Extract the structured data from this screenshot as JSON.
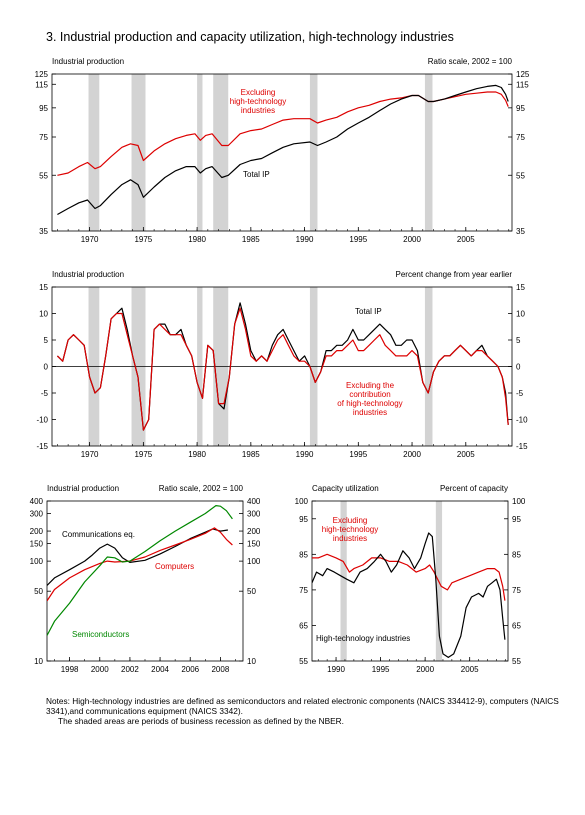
{
  "page_title": "3.  Industrial production and capacity utilization, high-technology industries",
  "notes": {
    "line1": "Notes:  High-technology industries are defined as semiconductors and related electronic components (NAICS 334412-9), computers (NAICS 3341),and communications equipment (NAICS 3342).",
    "line2": "The shaded areas are periods of business recession as defined by the NBER."
  },
  "colors": {
    "red": "#dd0000",
    "black": "#000000",
    "green": "#008800",
    "shade": "#d3d3d3"
  },
  "chart_data": [
    {
      "id": "ip_levels",
      "type": "line",
      "title_left": "Industrial production",
      "title_right": "Ratio scale, 2002 = 100",
      "yscale": "log",
      "ylim": [
        35,
        125
      ],
      "yticks": [
        35,
        55,
        75,
        95,
        115,
        125
      ],
      "xlim": [
        1966.5,
        2009.3
      ],
      "xticks": [
        1970,
        1975,
        1980,
        1985,
        1990,
        1995,
        2000,
        2005
      ],
      "recessions": [
        [
          1969.9,
          1970.9
        ],
        [
          1973.9,
          1975.2
        ],
        [
          1980.0,
          1980.5
        ],
        [
          1981.5,
          1982.9
        ],
        [
          1990.5,
          1991.2
        ],
        [
          2001.2,
          2001.9
        ]
      ],
      "series": [
        {
          "name": "Excluding high-technology industries",
          "label_lines": [
            "Excluding",
            "high-technology",
            "industries"
          ],
          "color": "red",
          "x": [
            1967,
            1968,
            1969,
            1969.8,
            1970.5,
            1971,
            1972,
            1973,
            1973.8,
            1974.5,
            1975.0,
            1976,
            1977,
            1978,
            1979,
            1979.8,
            1980.3,
            1980.8,
            1981.4,
            1982.3,
            1982.9,
            1984,
            1985,
            1986,
            1987,
            1988,
            1989,
            1990.5,
            1991.2,
            1992,
            1993,
            1994,
            1995,
            1996,
            1997,
            1998,
            1999,
            2000,
            2000.6,
            2001.5,
            2002,
            2003,
            2004,
            2005,
            2006,
            2007,
            2007.8,
            2008.3,
            2008.7,
            2008.95
          ],
          "y": [
            55,
            56,
            59,
            61,
            58,
            59,
            64,
            69,
            71,
            70,
            62,
            67,
            71,
            74,
            76,
            77,
            73,
            76,
            77,
            70,
            70,
            77,
            79,
            80,
            83,
            86,
            87,
            87,
            84,
            86,
            88,
            92,
            95,
            97,
            100,
            102,
            103,
            105,
            105,
            100,
            100,
            102,
            104,
            106,
            107,
            108,
            108,
            106,
            101,
            96
          ]
        },
        {
          "name": "Total IP",
          "label_lines": [
            "Total IP"
          ],
          "color": "black",
          "x": [
            1967,
            1968,
            1969,
            1969.8,
            1970.5,
            1971,
            1972,
            1973,
            1973.8,
            1974.5,
            1975.0,
            1976,
            1977,
            1978,
            1979,
            1979.8,
            1980.3,
            1980.8,
            1981.4,
            1982.3,
            1982.9,
            1984,
            1985,
            1986,
            1987,
            1988,
            1989,
            1990.5,
            1991.2,
            1992,
            1993,
            1994,
            1995,
            1996,
            1997,
            1998,
            1999,
            2000,
            2000.6,
            2001.5,
            2002,
            2003,
            2004,
            2005,
            2006,
            2007,
            2007.8,
            2008.3,
            2008.7,
            2008.95
          ],
          "y": [
            40,
            42,
            44,
            45,
            42,
            43,
            47,
            51,
            53,
            51,
            46,
            50,
            54,
            57,
            59,
            59,
            56,
            58,
            59,
            54,
            55,
            60,
            62,
            63,
            66,
            69,
            71,
            72,
            70,
            72,
            75,
            80,
            84,
            88,
            93,
            98,
            102,
            105,
            105,
            100,
            100,
            102,
            105,
            108,
            111,
            113,
            114,
            112,
            106,
            100
          ]
        }
      ]
    },
    {
      "id": "ip_pct_change",
      "type": "line",
      "title_left": "Industrial production",
      "title_right": "Percent change from year earlier",
      "ylim": [
        -15,
        15
      ],
      "yticks": [
        -15,
        -10,
        -5,
        0,
        5,
        10,
        15
      ],
      "xlim": [
        1966.5,
        2009.3
      ],
      "xticks": [
        1970,
        1975,
        1980,
        1985,
        1990,
        1995,
        2000,
        2005
      ],
      "recessions": [
        [
          1969.9,
          1970.9
        ],
        [
          1973.9,
          1975.2
        ],
        [
          1980.0,
          1980.5
        ],
        [
          1981.5,
          1982.9
        ],
        [
          1990.5,
          1991.2
        ],
        [
          2001.2,
          2001.9
        ]
      ],
      "series": [
        {
          "name": "Total IP",
          "label_lines": [
            "Total IP"
          ],
          "color": "black",
          "x": [
            1967,
            1967.5,
            1968,
            1968.5,
            1969,
            1969.5,
            1970,
            1970.5,
            1971,
            1971.5,
            1972,
            1972.5,
            1973,
            1973.5,
            1974,
            1974.5,
            1975,
            1975.5,
            1976,
            1976.5,
            1977,
            1977.5,
            1978,
            1978.5,
            1979,
            1979.5,
            1980,
            1980.5,
            1981,
            1981.5,
            1982,
            1982.5,
            1983,
            1983.5,
            1984,
            1984.5,
            1985,
            1985.5,
            1986,
            1986.5,
            1987,
            1987.5,
            1988,
            1988.5,
            1989,
            1989.5,
            1990,
            1990.5,
            1991,
            1991.5,
            1992,
            1992.5,
            1993,
            1993.5,
            1994,
            1994.5,
            1995,
            1995.5,
            1996,
            1996.5,
            1997,
            1997.5,
            1998,
            1998.5,
            1999,
            1999.5,
            2000,
            2000.5,
            2001,
            2001.5,
            2002,
            2002.5,
            2003,
            2003.5,
            2004,
            2004.5,
            2005,
            2005.5,
            2006,
            2006.5,
            2007,
            2007.5,
            2008,
            2008.4,
            2008.7,
            2008.95
          ],
          "y": [
            2,
            1,
            5,
            6,
            5,
            4,
            -2,
            -5,
            -4,
            2,
            9,
            10,
            11,
            7,
            2,
            -2,
            -12,
            -10,
            7,
            8,
            8,
            6,
            6,
            7,
            4,
            2,
            -3,
            -6,
            4,
            3,
            -7,
            -8,
            -2,
            8,
            12,
            8,
            3,
            1,
            2,
            1,
            4,
            6,
            7,
            5,
            3,
            1,
            2,
            0,
            -3,
            -1,
            3,
            3,
            4,
            4,
            5,
            7,
            5,
            5,
            6,
            7,
            8,
            7,
            6,
            4,
            4,
            5,
            5,
            3,
            -3,
            -5,
            -1,
            1,
            2,
            2,
            3,
            4,
            3,
            2,
            3,
            4,
            2,
            1,
            0,
            -2,
            -5,
            -11
          ]
        },
        {
          "name": "Excluding the contribution of high-technology industries",
          "label_lines": [
            "Excluding the",
            "contribution",
            "of high-technology",
            "industries"
          ],
          "color": "red",
          "x": [
            1967,
            1967.5,
            1968,
            1968.5,
            1969,
            1969.5,
            1970,
            1970.5,
            1971,
            1971.5,
            1972,
            1972.5,
            1973,
            1973.5,
            1974,
            1974.5,
            1975,
            1975.5,
            1976,
            1976.5,
            1977,
            1977.5,
            1978,
            1978.5,
            1979,
            1979.5,
            1980,
            1980.5,
            1981,
            1981.5,
            1982,
            1982.5,
            1983,
            1983.5,
            1984,
            1984.5,
            1985,
            1985.5,
            1986,
            1986.5,
            1987,
            1987.5,
            1988,
            1988.5,
            1989,
            1989.5,
            1990,
            1990.5,
            1991,
            1991.5,
            1992,
            1992.5,
            1993,
            1993.5,
            1994,
            1994.5,
            1995,
            1995.5,
            1996,
            1996.5,
            1997,
            1997.5,
            1998,
            1998.5,
            1999,
            1999.5,
            2000,
            2000.5,
            2001,
            2001.5,
            2002,
            2002.5,
            2003,
            2003.5,
            2004,
            2004.5,
            2005,
            2005.5,
            2006,
            2006.5,
            2007,
            2007.5,
            2008,
            2008.4,
            2008.7,
            2008.95
          ],
          "y": [
            2,
            1,
            5,
            6,
            5,
            4,
            -2,
            -5,
            -4,
            2,
            9,
            10,
            10,
            6,
            2,
            -2,
            -12,
            -10,
            7,
            8,
            7,
            6,
            6,
            6,
            4,
            2,
            -3,
            -6,
            4,
            3,
            -7,
            -7,
            -2,
            8,
            11,
            7,
            2,
            1,
            2,
            1,
            3,
            5,
            6,
            4,
            2,
            1,
            1,
            0,
            -3,
            -1,
            2,
            2,
            3,
            3,
            4,
            5,
            3,
            3,
            4,
            5,
            6,
            4,
            3,
            2,
            2,
            2,
            3,
            2,
            -3,
            -5,
            -1,
            1,
            2,
            2,
            3,
            4,
            3,
            2,
            3,
            3,
            2,
            1,
            0,
            -2,
            -6,
            -11
          ]
        }
      ]
    },
    {
      "id": "hightech_ip",
      "type": "line",
      "title_left": "Industrial production",
      "title_right": "Ratio scale, 2002 = 100",
      "yscale": "log",
      "ylim": [
        10,
        400
      ],
      "yticks": [
        10,
        50,
        100,
        150,
        200,
        300,
        400
      ],
      "xlim": [
        1996.5,
        2009.5
      ],
      "xticks": [
        1998,
        2000,
        2002,
        2004,
        2006,
        2008
      ],
      "series": [
        {
          "name": "Communications eq.",
          "color": "black",
          "x": [
            1996.5,
            1997,
            1998,
            1999,
            1999.5,
            2000,
            2000.5,
            2001,
            2001.5,
            2002,
            2003,
            2004,
            2005,
            2006,
            2007,
            2007.5,
            2008,
            2008.5
          ],
          "y": [
            57,
            68,
            82,
            100,
            115,
            135,
            148,
            135,
            108,
            97,
            102,
            118,
            140,
            168,
            195,
            210,
            200,
            205
          ]
        },
        {
          "name": "Computers",
          "color": "red",
          "x": [
            1996.5,
            1997,
            1998,
            1999,
            2000,
            2000.5,
            2001,
            2002,
            2003,
            2004,
            2005,
            2006,
            2007,
            2007.6,
            2008,
            2008.4,
            2008.8
          ],
          "y": [
            40,
            52,
            68,
            82,
            95,
            100,
            98,
            100,
            110,
            128,
            145,
            165,
            190,
            215,
            195,
            165,
            145
          ]
        },
        {
          "name": "Semiconductors",
          "color": "green",
          "x": [
            1996.5,
            1997,
            1998,
            1999,
            2000,
            2000.5,
            2001,
            2001.5,
            2002,
            2003,
            2004,
            2005,
            2006,
            2007,
            2007.7,
            2008,
            2008.4,
            2008.8
          ],
          "y": [
            18,
            25,
            38,
            62,
            90,
            110,
            108,
            98,
            100,
            125,
            160,
            200,
            245,
            300,
            360,
            355,
            320,
            265
          ]
        }
      ]
    },
    {
      "id": "capacity_util",
      "type": "line",
      "title_left": "Capacity utilization",
      "title_right": "Percent of capacity",
      "ylim": [
        55,
        100
      ],
      "yticks": [
        55,
        65,
        75,
        85,
        95,
        100
      ],
      "xlim": [
        1987.3,
        2009.3
      ],
      "xticks": [
        1990,
        1995,
        2000,
        2005
      ],
      "recessions": [
        [
          1990.5,
          1991.2
        ],
        [
          2001.2,
          2001.9
        ]
      ],
      "series": [
        {
          "name": "Excluding high-technology industries",
          "label_lines": [
            "Excluding",
            "high-technology",
            "industries"
          ],
          "color": "red",
          "x": [
            1987.3,
            1988,
            1989,
            1990,
            1990.8,
            1991.5,
            1992,
            1993,
            1994,
            1995,
            1996,
            1997,
            1998,
            1999,
            2000,
            2000.5,
            2001,
            2001.8,
            2002.5,
            2003,
            2004,
            2005,
            2006,
            2007,
            2007.8,
            2008.3,
            2008.7,
            2008.95
          ],
          "y": [
            84,
            84,
            85,
            84,
            83,
            80,
            81,
            82,
            84,
            84,
            83,
            83,
            82,
            80,
            81,
            82,
            80,
            76,
            75,
            77,
            78,
            79,
            80,
            81,
            81,
            80,
            76,
            72
          ]
        },
        {
          "name": "High-technology industries",
          "label_lines": [
            "High-technology industries"
          ],
          "color": "black",
          "x": [
            1987.3,
            1987.8,
            1988.5,
            1989,
            1989.8,
            1990.5,
            1991.2,
            1992,
            1992.7,
            1993.5,
            1994.3,
            1995,
            1995.6,
            1996.2,
            1996.8,
            1997.5,
            1998.2,
            1998.8,
            1999.5,
            2000,
            2000.4,
            2000.8,
            2001.2,
            2001.6,
            2002,
            2002.6,
            2003.2,
            2004,
            2004.6,
            2005.2,
            2006,
            2006.5,
            2007,
            2007.5,
            2008,
            2008.4,
            2008.7,
            2008.95
          ],
          "y": [
            77,
            80,
            79,
            81,
            80,
            79,
            78,
            77,
            80,
            81,
            83,
            85,
            83,
            80,
            82,
            86,
            84,
            81,
            84,
            88,
            91,
            90,
            78,
            62,
            57,
            56,
            57,
            62,
            70,
            73,
            74,
            73,
            76,
            77,
            78,
            75,
            67,
            61
          ]
        }
      ]
    }
  ]
}
